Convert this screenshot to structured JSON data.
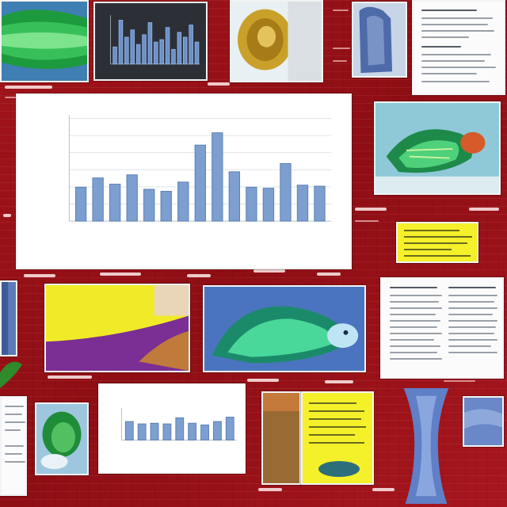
{
  "palette": {
    "background": "#9b1118",
    "bar": "#7d9fd0",
    "bar_stroke": "#5b7fb5",
    "frame": "#f3f3f3",
    "yellow": "#f4f02a",
    "doc": "#fbfbfb"
  },
  "main_chart": {
    "title": "",
    "bar_levels": [
      0.33,
      0.42,
      0.36,
      0.45,
      0.31,
      0.29,
      0.38,
      0.74,
      0.86,
      0.48,
      0.33,
      0.32,
      0.56,
      0.35,
      0.34
    ]
  },
  "small_chart": {
    "title": "",
    "bar_levels": [
      0.55,
      0.48,
      0.5,
      0.48,
      0.66,
      0.5,
      0.45,
      0.55,
      0.68
    ]
  },
  "dark_chart": {
    "bar_levels": [
      0.35,
      0.9,
      0.55,
      0.7,
      0.4,
      0.6,
      0.85,
      0.45,
      0.5,
      0.75,
      0.3,
      0.65,
      0.55,
      0.8,
      0.45
    ]
  },
  "images": {
    "green_waves": "green-wave-image",
    "parrot_large": "parrot-image",
    "parrot_small": "bird-image",
    "shell": "shell-image",
    "blue_vase": "blue-figure-image",
    "yellow_purple": "yellow-purple-image",
    "brown_texture": "brown-texture-image"
  }
}
